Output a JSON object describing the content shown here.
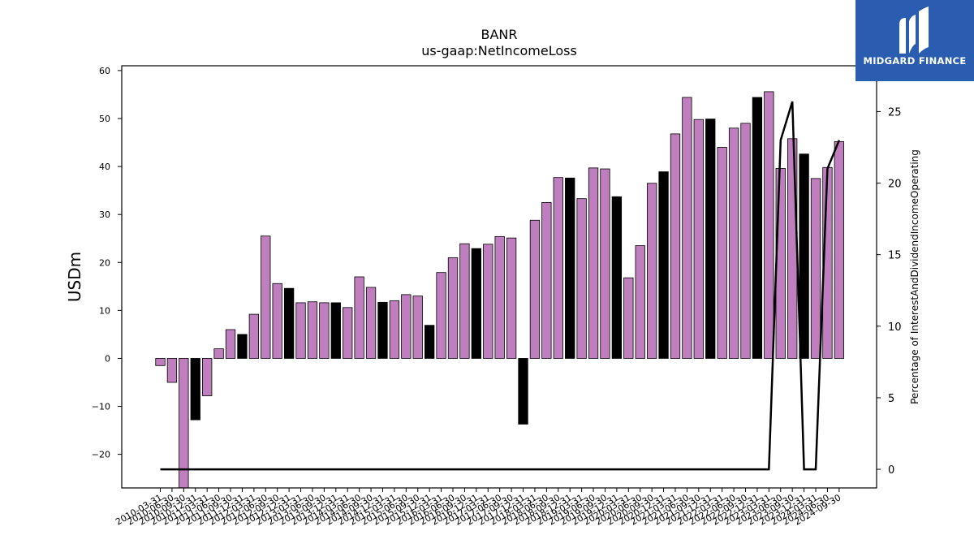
{
  "branding": {
    "logo_text": "MIDGARD FINANCE",
    "logo_bg": "#2a5db0"
  },
  "chart_data": {
    "type": "bar",
    "title": "BANR",
    "subtitle": "us-gaap:NetIncomeLoss",
    "ylabel": "USDm",
    "y2label": "Percentage of InterestAndDividendIncomeOperating",
    "ylim": [
      -27,
      61
    ],
    "y2lim": [
      -1.3,
      28.2
    ],
    "yticks": [
      -20,
      -10,
      0,
      10,
      20,
      30,
      40,
      50,
      60
    ],
    "y2ticks": [
      0,
      5,
      10,
      15,
      20,
      25
    ],
    "grid": false,
    "colors": {
      "default": "#bf7fbf",
      "q4": "#000000",
      "line": "#000000"
    },
    "categories": [
      "2010-03-31",
      "2010-06-30",
      "2010-09-30",
      "2010-12-31",
      "2011-03-31",
      "2011-06-30",
      "2011-09-30",
      "2011-12-31",
      "2012-03-31",
      "2012-06-30",
      "2012-09-30",
      "2012-12-31",
      "2013-03-31",
      "2013-06-30",
      "2013-09-30",
      "2013-12-31",
      "2014-03-31",
      "2014-06-30",
      "2014-09-30",
      "2014-12-31",
      "2015-03-31",
      "2015-06-30",
      "2015-09-30",
      "2015-12-31",
      "2016-03-31",
      "2016-06-30",
      "2016-09-30",
      "2016-12-31",
      "2017-03-31",
      "2017-06-30",
      "2017-09-30",
      "2017-12-31",
      "2018-03-31",
      "2018-06-30",
      "2018-09-30",
      "2018-12-31",
      "2019-03-31",
      "2019-06-30",
      "2019-09-30",
      "2019-12-31",
      "2020-03-31",
      "2020-06-30",
      "2020-09-30",
      "2020-12-31",
      "2021-03-31",
      "2021-06-30",
      "2021-09-30",
      "2021-12-31",
      "2022-03-31",
      "2022-06-30",
      "2022-09-30",
      "2022-12-31",
      "2023-03-31",
      "2023-06-30",
      "2023-09-30",
      "2023-12-31",
      "2024-03-31",
      "2024-06-30",
      "2024-09-30"
    ],
    "values": [
      -1.5,
      -5,
      -27,
      -12.8,
      -7.8,
      2,
      6,
      5,
      9.2,
      25.5,
      15.6,
      14.6,
      11.6,
      11.8,
      11.6,
      11.6,
      10.6,
      17,
      14.8,
      11.7,
      12,
      13.3,
      13,
      6.9,
      17.9,
      21,
      23.9,
      22.9,
      23.8,
      25.4,
      25.1,
      -13.7,
      28.8,
      32.5,
      37.7,
      37.6,
      33.3,
      39.7,
      39.5,
      33.7,
      16.8,
      23.5,
      36.5,
      38.9,
      46.8,
      54.4,
      49.8,
      49.9,
      44,
      48,
      49,
      54.4,
      55.6,
      39.6,
      45.8,
      42.6,
      37.5,
      39.8,
      45.2
    ],
    "q4_flags": [
      0,
      0,
      0,
      1,
      0,
      0,
      0,
      1,
      0,
      0,
      0,
      1,
      0,
      0,
      0,
      1,
      0,
      0,
      0,
      1,
      0,
      0,
      0,
      1,
      0,
      0,
      0,
      1,
      0,
      0,
      0,
      1,
      0,
      0,
      0,
      1,
      0,
      0,
      0,
      1,
      0,
      0,
      0,
      1,
      0,
      0,
      0,
      1,
      0,
      0,
      0,
      1,
      0,
      0,
      0,
      1,
      0,
      0,
      0
    ],
    "line_series": {
      "axis": "right",
      "values": [
        0,
        0,
        0,
        0,
        0,
        0,
        0,
        0,
        0,
        0,
        0,
        0,
        0,
        0,
        0,
        0,
        0,
        0,
        0,
        0,
        0,
        0,
        0,
        0,
        0,
        0,
        0,
        0,
        0,
        0,
        0,
        0,
        0,
        0,
        0,
        0,
        0,
        0,
        0,
        0,
        0,
        0,
        0,
        0,
        0,
        0,
        0,
        0,
        0,
        0,
        0,
        0,
        0,
        23,
        25.7,
        0,
        0,
        21,
        23
      ]
    }
  }
}
